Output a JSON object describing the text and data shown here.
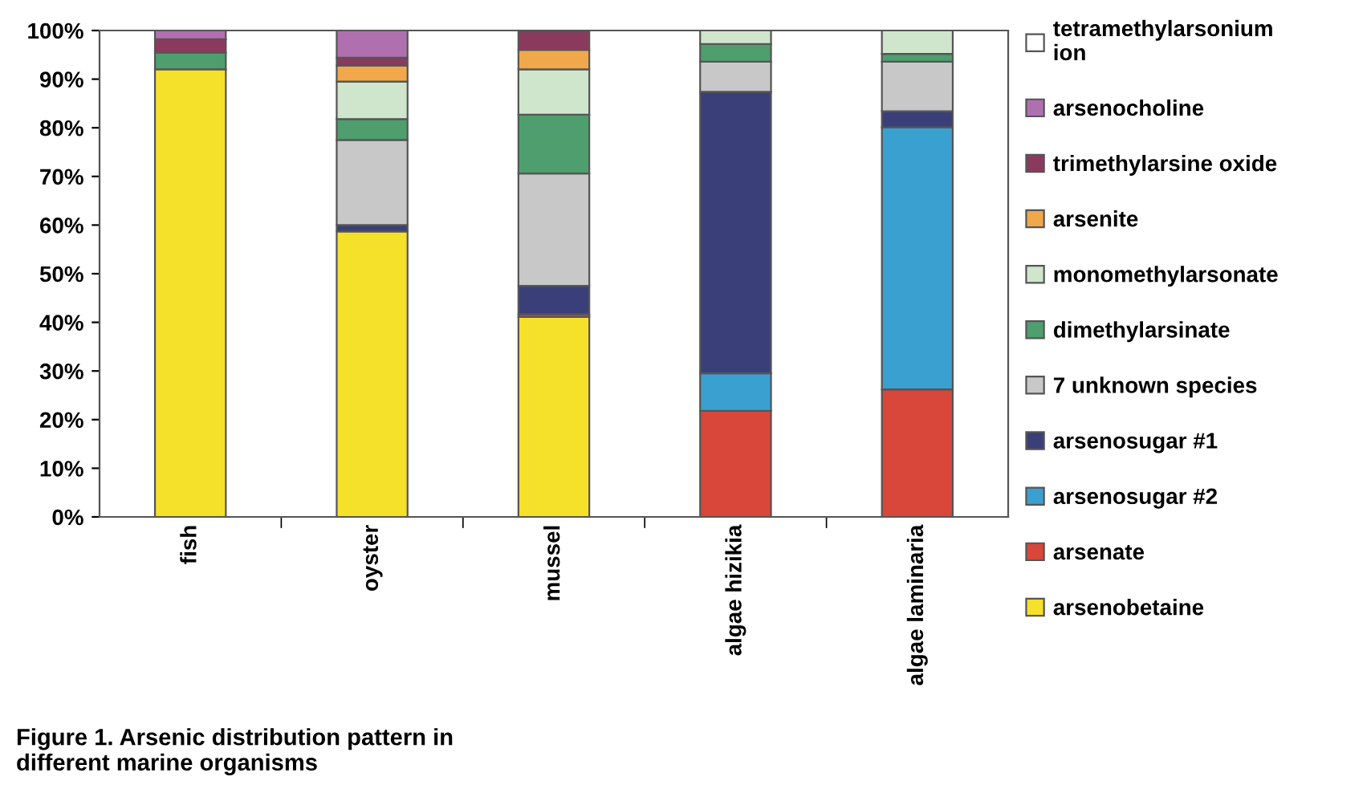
{
  "chart_data": {
    "type": "bar",
    "stacked": true,
    "categories": [
      "fish",
      "oyster",
      "mussel",
      "algae hizikia",
      "algae laminaria"
    ],
    "series": [
      {
        "name": "arsenobetaine",
        "color": "#f5e12a",
        "values": [
          92,
          58.7,
          41.1,
          null,
          null
        ]
      },
      {
        "name": "arsenate",
        "color": "#d9463a",
        "values": [
          null,
          null,
          0.6,
          21.8,
          26.2
        ]
      },
      {
        "name": "arsenosugar #2",
        "color": "#3aa0d0",
        "values": [
          null,
          null,
          null,
          7.7,
          53.9
        ]
      },
      {
        "name": "arsenosugar #1",
        "color": "#3a3f7a",
        "values": [
          null,
          1.3,
          5.8,
          57.9,
          3.3
        ]
      },
      {
        "name": "7 unknown species",
        "color": "#c8c8c8",
        "values": [
          null,
          17.5,
          23.1,
          6.2,
          10.2
        ]
      },
      {
        "name": "dimethylarsinate",
        "color": "#4f9e6e",
        "values": [
          3.5,
          4.3,
          12.1,
          3.6,
          1.6
        ]
      },
      {
        "name": "monomethylarsonate",
        "color": "#cfe6cc",
        "values": [
          null,
          7.7,
          9.3,
          2.8,
          4.8
        ]
      },
      {
        "name": "arsenite",
        "color": "#f0a84a",
        "values": [
          null,
          3.3,
          4.0,
          null,
          null
        ]
      },
      {
        "name": "trimethylarsine oxide",
        "color": "#8b3a5e",
        "values": [
          2.7,
          1.6,
          3.8,
          null,
          null
        ]
      },
      {
        "name": "arsenocholine",
        "color": "#b070b0",
        "values": [
          1.8,
          5.6,
          null,
          null,
          null
        ]
      },
      {
        "name": "tetramethylarsonium\nion",
        "color": "#ffffff",
        "values": [
          null,
          null,
          null,
          null,
          null
        ]
      }
    ],
    "ylim": [
      0,
      100
    ],
    "yticks": [
      {
        "value": 0,
        "label": "0%"
      },
      {
        "value": 10,
        "label": "10%"
      },
      {
        "value": 20,
        "label": "20%"
      },
      {
        "value": 30,
        "label": "30%"
      },
      {
        "value": 40,
        "label": "40%"
      },
      {
        "value": 50,
        "label": "50%"
      },
      {
        "value": 60,
        "label": "60%"
      },
      {
        "value": 70,
        "label": "70%"
      },
      {
        "value": 80,
        "label": "80%"
      },
      {
        "value": 90,
        "label": "90%"
      },
      {
        "value": 100,
        "label": "100%"
      }
    ],
    "legend": "right",
    "grid": false,
    "annotations": [
      "Figure 1. Arsenic distribution pattern in\ndifferent marine organisms"
    ]
  }
}
